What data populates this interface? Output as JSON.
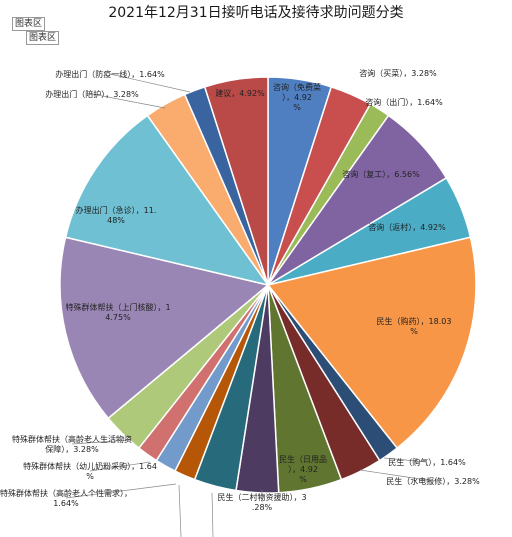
{
  "chart_data": {
    "type": "pie",
    "title": "2021年12月31日接听电话及接待求助问题分类",
    "area_tags": [
      "图表区",
      "图表区"
    ],
    "slices": [
      {
        "label": "咨询（免费菜）",
        "pct": "4.92%",
        "value": 4.92,
        "color": "#4f7fc1"
      },
      {
        "label": "咨询（买菜）",
        "pct": "3.28%",
        "value": 3.28,
        "color": "#c84f4e"
      },
      {
        "label": "咨询（出门）",
        "pct": "1.64%",
        "value": 1.64,
        "color": "#9bbb59"
      },
      {
        "label": "咨询（复工）",
        "pct": "6.56%",
        "value": 6.56,
        "color": "#8064a2"
      },
      {
        "label": "咨询（返村）",
        "pct": "4.92%",
        "value": 4.92,
        "color": "#4bacc6"
      },
      {
        "label": "民生（购药）",
        "pct": "18.03%",
        "value": 18.03,
        "color": "#f79646"
      },
      {
        "label": "民生（购气）",
        "pct": "1.64%",
        "value": 1.64,
        "color": "#2c4d75"
      },
      {
        "label": "民生（水电报修）",
        "pct": "3.28%",
        "value": 3.28,
        "color": "#772c2a"
      },
      {
        "label": "民生（日用品）",
        "pct": "4.92%",
        "value": 4.92,
        "color": "#5f7530"
      },
      {
        "label": "民生（二村物资援助）",
        "pct": "3.28%",
        "value": 3.28,
        "color": "#4d3b62"
      },
      {
        "label": "",
        "pct": "",
        "value": 3.28,
        "color": "#276a7c"
      },
      {
        "label": "",
        "pct": "",
        "value": 1.64,
        "color": "#b65708"
      },
      {
        "label": "特殊群体帮扶（高龄老人个性需求）",
        "pct": "1.64%",
        "value": 1.64,
        "color": "#729aca"
      },
      {
        "label": "特殊群体帮扶（幼儿奶粉采购）",
        "pct": "1.64%",
        "value": 1.64,
        "color": "#d0706f"
      },
      {
        "label": "特殊群体帮扶（高龄老人生活物资保障）",
        "pct": "3.28%",
        "value": 3.28,
        "color": "#afc97a"
      },
      {
        "label": "特殊群体帮扶（上门核酸）",
        "pct": "14.75%",
        "value": 14.75,
        "color": "#9a86b5"
      },
      {
        "label": "办理出门（急诊）",
        "pct": "11.48%",
        "value": 11.48,
        "color": "#6fc0d3"
      },
      {
        "label": "办理出门（陪护）",
        "pct": "3.28%",
        "value": 3.28,
        "color": "#f9ac6e"
      },
      {
        "label": "办理出门（防疫一线）",
        "pct": "1.64%",
        "value": 1.64,
        "color": "#3a64a0"
      },
      {
        "label": "建议",
        "pct": "4.92%",
        "value": 4.92,
        "color": "#b94a48"
      }
    ]
  }
}
